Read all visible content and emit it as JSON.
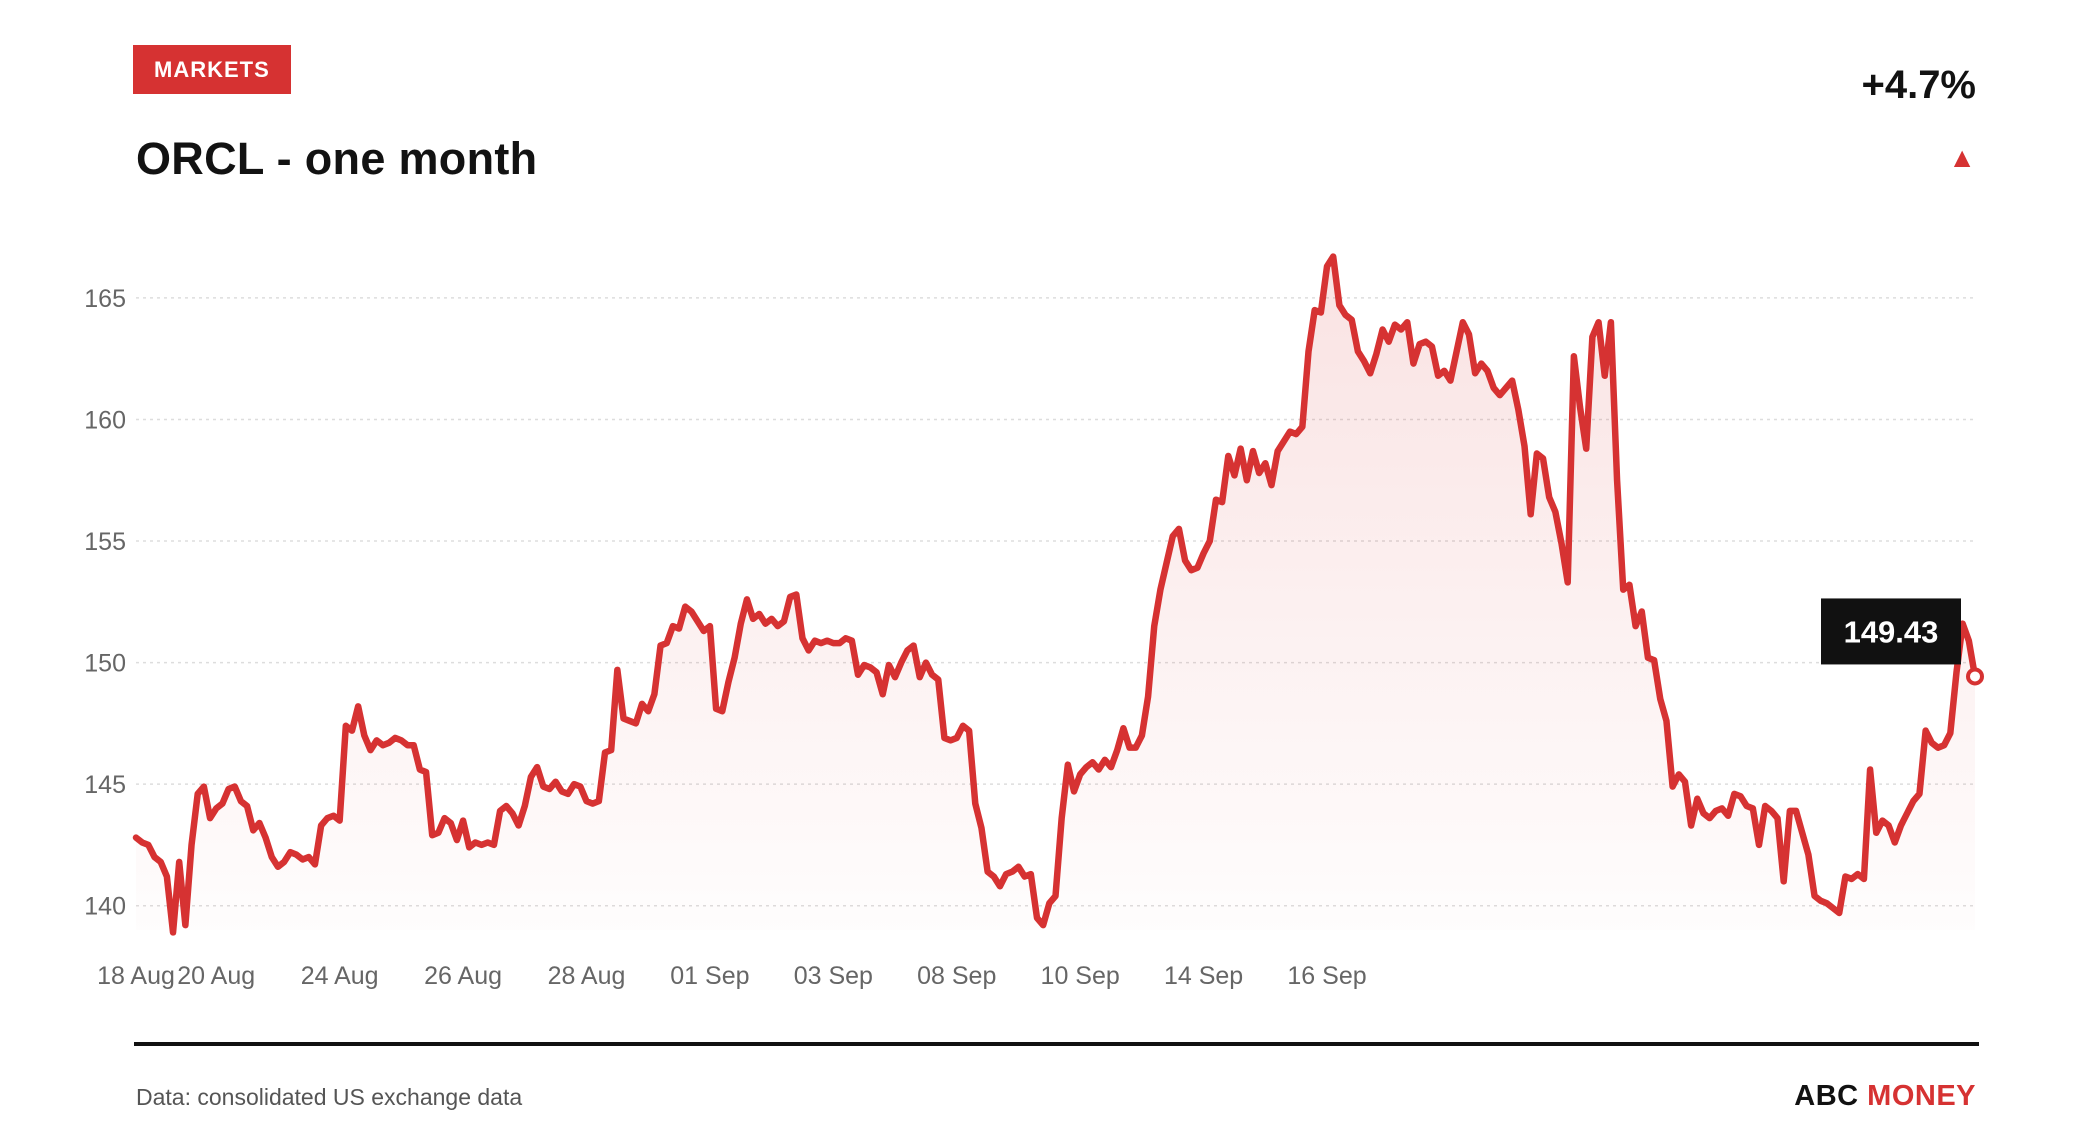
{
  "badge": "MARKETS",
  "title": "ORCL - one month",
  "change": "+4.7%",
  "change_arrow": "▲",
  "source": "Data: consolidated US exchange data",
  "brand": {
    "part1": "ABC",
    "part2": "MONEY"
  },
  "colors": {
    "accent": "#d63232",
    "text": "#121212",
    "grid": "#dddddd",
    "tick": "#666666"
  },
  "chart_data": {
    "type": "area",
    "ylim": [
      139,
      168
    ],
    "y_ticks": [
      140,
      145,
      150,
      155,
      160,
      165
    ],
    "y_tick_labels": [
      "140",
      "145",
      "150",
      "155",
      "160",
      "165"
    ],
    "x_tick_labels": [
      "18 Aug",
      "20 Aug",
      "24 Aug",
      "26 Aug",
      "28 Aug",
      "01 Sep",
      "03 Sep",
      "08 Sep",
      "10 Sep",
      "14 Sep",
      "16 Sep"
    ],
    "x_tick_index": [
      0,
      13,
      33,
      53,
      73,
      93,
      113,
      133,
      153,
      173,
      193
    ],
    "last_value_label": "149.43",
    "grid": true,
    "series": [
      {
        "values": [
          142.8,
          142.6,
          142.5,
          142.0,
          141.8,
          141.2,
          138.9,
          141.8,
          139.2,
          142.5,
          144.6,
          144.9,
          143.6,
          144.0,
          144.2,
          144.8,
          144.9,
          144.3,
          144.1,
          143.1,
          143.4,
          142.8,
          142.0,
          141.6,
          141.8,
          142.2,
          142.1,
          141.9,
          142.0,
          141.7,
          143.3,
          143.6,
          143.7,
          143.5,
          147.4,
          147.2,
          148.2,
          147.0,
          146.4,
          146.8,
          146.6,
          146.7,
          146.9,
          146.8,
          146.6,
          146.6,
          145.6,
          145.5,
          142.9,
          143.0,
          143.6,
          143.4,
          142.7,
          143.5,
          142.4,
          142.6,
          142.5,
          142.6,
          142.5,
          143.9,
          144.1,
          143.8,
          143.3,
          144.1,
          145.3,
          145.7,
          144.9,
          144.8,
          145.1,
          144.7,
          144.6,
          145.0,
          144.9,
          144.3,
          144.2,
          144.3,
          146.3,
          146.4,
          149.7,
          147.7,
          147.6,
          147.5,
          148.3,
          148.0,
          148.7,
          150.7,
          150.8,
          151.5,
          151.4,
          152.3,
          152.1,
          151.7,
          151.3,
          151.5,
          148.1,
          148.0,
          149.2,
          150.2,
          151.6,
          152.6,
          151.8,
          152.0,
          151.6,
          151.8,
          151.5,
          151.7,
          152.7,
          152.8,
          151.0,
          150.5,
          150.9,
          150.8,
          150.9,
          150.8,
          150.8,
          151.0,
          150.9,
          149.5,
          149.9,
          149.8,
          149.6,
          148.7,
          149.9,
          149.4,
          150.0,
          150.5,
          150.7,
          149.4,
          150.0,
          149.5,
          149.3,
          146.9,
          146.8,
          146.9,
          147.4,
          147.2,
          144.2,
          143.2,
          141.4,
          141.2,
          140.8,
          141.3,
          141.4,
          141.6,
          141.2,
          141.3,
          139.5,
          139.2,
          140.1,
          140.4,
          143.6,
          145.8,
          144.7,
          145.4,
          145.7,
          145.9,
          145.6,
          146.0,
          145.7,
          146.4,
          147.3,
          146.5,
          146.5,
          147.0,
          148.6,
          151.5,
          153.0,
          154.1,
          155.2,
          155.5,
          154.2,
          153.8,
          153.9,
          154.5,
          155.0,
          156.7,
          156.6,
          158.5,
          157.7,
          158.8,
          157.5,
          158.7,
          157.8,
          158.2,
          157.3,
          158.7,
          159.1,
          159.5,
          159.4,
          159.7,
          162.8,
          164.5,
          164.4,
          166.3,
          166.7,
          164.7,
          164.3,
          164.1,
          162.8,
          162.4,
          161.9,
          162.7,
          163.7,
          163.2,
          163.9,
          163.7,
          164.0,
          162.3,
          163.1,
          163.2,
          163.0,
          161.8,
          162.0,
          161.6,
          162.8,
          164.0,
          163.5,
          161.9,
          162.3,
          162.0,
          161.3,
          161.0,
          161.3,
          161.6,
          160.4,
          158.9,
          156.1,
          158.6,
          158.4,
          156.8,
          156.2,
          154.9,
          153.3,
          162.6,
          160.5,
          158.8,
          163.4,
          164.0,
          161.8,
          164.0,
          157.5,
          153.0,
          153.2,
          151.5,
          152.1,
          150.2,
          150.1,
          148.5,
          147.6,
          144.9,
          145.4,
          145.1,
          143.3,
          144.4,
          143.8,
          143.6,
          143.9,
          144.0,
          143.7,
          144.6,
          144.5,
          144.1,
          144.0,
          142.5,
          144.1,
          143.9,
          143.6,
          141.0,
          143.9,
          143.9,
          143.0,
          142.1,
          140.4,
          140.2,
          140.1,
          139.9,
          139.7,
          141.2,
          141.1,
          141.3,
          141.1,
          145.6,
          143.0,
          143.5,
          143.3,
          142.6,
          143.3,
          143.8,
          144.3,
          144.6,
          147.2,
          146.7,
          146.5,
          146.6,
          147.1,
          149.6,
          151.6,
          150.9,
          149.43
        ]
      }
    ]
  }
}
